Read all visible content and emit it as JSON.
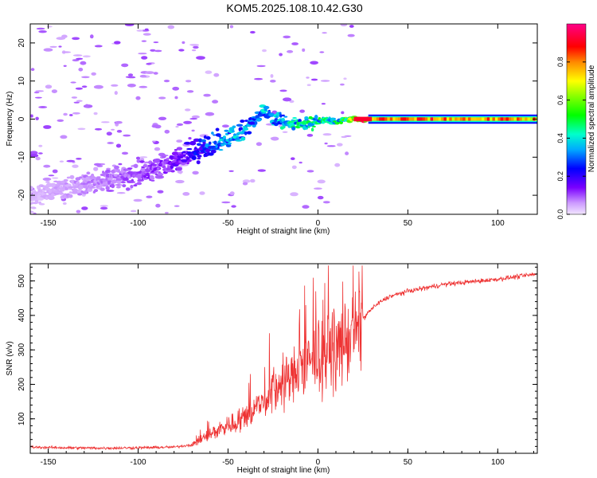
{
  "title": "KOM5.2025.108.10.42.G30",
  "chart_data": [
    {
      "type": "heatmap",
      "title": "KOM5.2025.108.10.42.G30",
      "xlabel": "Height of straight line (km)",
      "ylabel": "Frequency (Hz)",
      "xlim": [
        -160,
        122
      ],
      "ylim": [
        -25,
        25
      ],
      "xticks": [
        -150,
        -100,
        -50,
        0,
        50,
        100
      ],
      "yticks": [
        -20,
        -10,
        0,
        10,
        20
      ],
      "colorbar": {
        "label": "Normalized spectral amplitude",
        "range": [
          0,
          1
        ],
        "ticks": [
          0.0,
          0.2,
          0.4,
          0.6,
          0.8
        ],
        "tick_labels": [
          "0.0",
          "0.2",
          "0.4",
          "0.6",
          "0.8"
        ]
      },
      "ridge": {
        "x": [
          -155,
          -140,
          -120,
          -105,
          -90,
          -75,
          -65,
          -55,
          -45,
          -35,
          -30,
          -25,
          -15,
          -5,
          5,
          10,
          15,
          20,
          25,
          30,
          122
        ],
        "freq": [
          -20,
          -18,
          -16,
          -15,
          -13,
          -10,
          -8,
          -6,
          -4,
          0,
          2,
          0,
          -1,
          -1,
          0,
          -1,
          0,
          0,
          0,
          0,
          0
        ],
        "amplitude": [
          0.04,
          0.06,
          0.08,
          0.1,
          0.12,
          0.15,
          0.25,
          0.35,
          0.35,
          0.3,
          0.35,
          0.35,
          0.4,
          0.45,
          0.45,
          0.45,
          0.5,
          0.7,
          0.95,
          0.9,
          0.85
        ]
      }
    },
    {
      "type": "line",
      "xlabel": "Height of straight line (km)",
      "ylabel": "SNR (v/v)",
      "xlim": [
        -160,
        122
      ],
      "ylim": [
        0,
        550
      ],
      "xticks": [
        -150,
        -100,
        -50,
        0,
        50,
        100
      ],
      "yticks": [
        100,
        200,
        300,
        400,
        500
      ],
      "series": [
        {
          "color": "#ee3333",
          "x": [
            -160,
            -140,
            -120,
            -100,
            -80,
            -70,
            -65,
            -60,
            -55,
            -50,
            -45,
            -40,
            -35,
            -30,
            -25,
            -20,
            -15,
            -10,
            -5,
            0,
            5,
            10,
            15,
            20,
            25,
            30,
            35,
            40,
            50,
            60,
            70,
            80,
            90,
            100,
            110,
            122
          ],
          "y": [
            18,
            16,
            15,
            16,
            18,
            25,
            40,
            55,
            70,
            80,
            90,
            110,
            130,
            150,
            180,
            200,
            220,
            240,
            260,
            280,
            290,
            300,
            320,
            350,
            390,
            420,
            440,
            455,
            470,
            480,
            490,
            495,
            500,
            505,
            512,
            520
          ]
        }
      ]
    }
  ]
}
